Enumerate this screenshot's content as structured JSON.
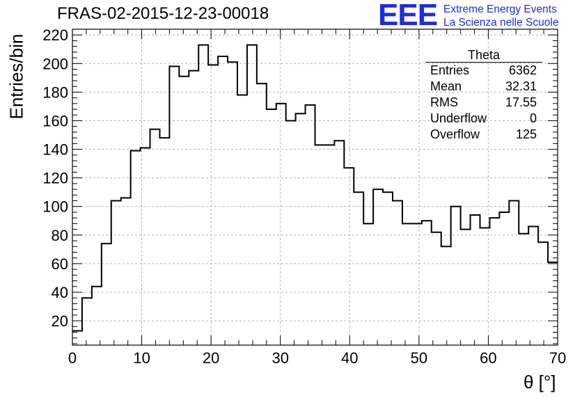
{
  "header": {
    "title": "FRAS-02-2015-12-23-00018",
    "logo_mark": "EEE",
    "logo_line1": "Extreme Energy Events",
    "logo_line2": "La Scienza nelle Scuole",
    "logo_color": "#1f2be0"
  },
  "stats_box": {
    "title": "Theta",
    "rows": [
      {
        "label": "Entries",
        "value": "6362"
      },
      {
        "label": "Mean",
        "value": "32.31"
      },
      {
        "label": "RMS",
        "value": "17.55"
      },
      {
        "label": "Underflow",
        "value": "0"
      },
      {
        "label": "Overflow",
        "value": "125"
      }
    ]
  },
  "chart_data": {
    "type": "histogram",
    "title": "FRAS-02-2015-12-23-00018",
    "xlabel": "θ [°]",
    "ylabel": "Entries/bin",
    "xlim": [
      0,
      70
    ],
    "ylim": [
      3,
      224
    ],
    "bin_width": 1.4,
    "x_ticks": [
      0,
      10,
      20,
      30,
      40,
      50,
      60,
      70
    ],
    "y_ticks": [
      20,
      40,
      60,
      80,
      100,
      120,
      140,
      160,
      180,
      200,
      220
    ],
    "grid": true,
    "values": [
      13,
      36,
      44,
      74,
      104,
      106,
      139,
      141,
      154,
      148,
      198,
      191,
      195,
      213,
      199,
      205,
      201,
      178,
      213,
      186,
      168,
      172,
      160,
      165,
      171,
      143,
      143,
      146,
      127,
      110,
      88,
      112,
      110,
      104,
      88,
      88,
      90,
      82,
      72,
      100,
      84,
      94,
      85,
      92,
      96,
      104,
      81,
      86,
      75,
      61
    ],
    "line_color": "#000000"
  }
}
